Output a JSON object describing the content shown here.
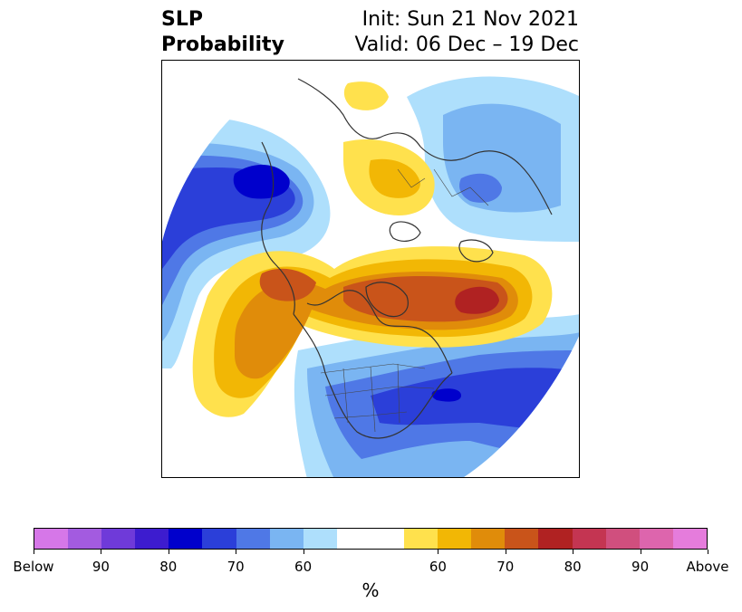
{
  "title": {
    "left": [
      "SLP",
      "Probability"
    ],
    "right": [
      "Init: Sun 21 Nov 2021",
      "Valid: 06 Dec – 19 Dec"
    ]
  },
  "colorbar": {
    "colors": [
      "#d677e8",
      "#a35be0",
      "#6f3ad9",
      "#3d1ccf",
      "#0000cc",
      "#2b3fd9",
      "#4f78e6",
      "#7ab5f2",
      "#aedffc",
      "#ffffff",
      "#ffffff",
      "#ffe14d",
      "#f2b705",
      "#e08c0a",
      "#c9541a",
      "#b02222",
      "#c43552",
      "#d04f7e",
      "#dd65ad",
      "#e57cdc"
    ],
    "tick_labels": [
      "Below",
      "90",
      "80",
      "70",
      "60",
      "60",
      "70",
      "80",
      "90",
      "Above"
    ],
    "unit": "%"
  },
  "map": {
    "projection": "polar-stereographic-north",
    "palette": {
      "blue_light": "#aedffc",
      "blue_mid": "#7ab5f2",
      "blue": "#4f78e6",
      "blue_dark": "#2b3fd9",
      "blue_deep": "#0000cc",
      "yellow": "#ffe14d",
      "gold": "#f2b705",
      "orange": "#e08c0a",
      "rust": "#c9541a",
      "red": "#b02222",
      "coast": "#333333"
    }
  }
}
